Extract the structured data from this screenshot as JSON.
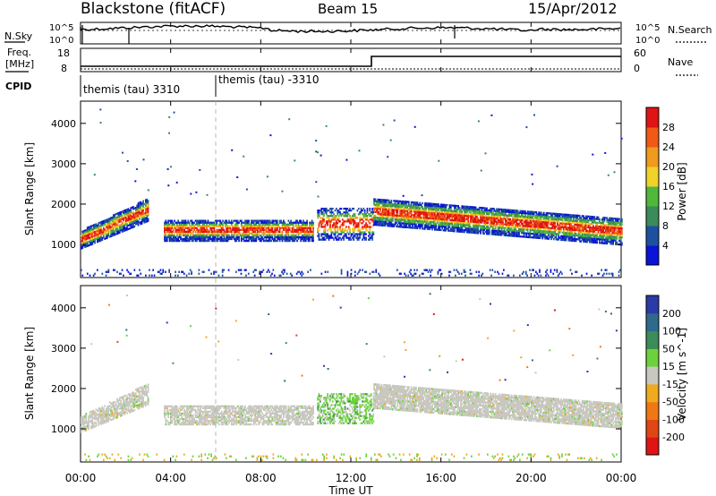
{
  "header": {
    "title": "Blackstone (fitACF)",
    "beam": "Beam 15",
    "date": "15/Apr/2012"
  },
  "labels": {
    "nsky": "N.Sky",
    "nsearch": "N.Search",
    "freq_line1": "Freq.",
    "freq_line2": "[MHz]",
    "nave": "Nave",
    "cpid": "CPID",
    "cpid_1": "themis (tau) 3310",
    "cpid_2": "themis (tau) -3310",
    "time_axis": "Time UT"
  },
  "ticks": {
    "noise_left": [
      "10^5",
      "10^0"
    ],
    "noise_right": [
      "10^5",
      "10^0"
    ],
    "freq_left": [
      "18",
      "8"
    ],
    "nave_right": [
      "60",
      "0"
    ],
    "range": [
      "1000",
      "2000",
      "3000",
      "4000"
    ],
    "time": [
      "00:00",
      "04:00",
      "08:00",
      "12:00",
      "16:00",
      "20:00",
      "00:00"
    ]
  },
  "chart_data": [
    {
      "type": "heatmap",
      "name": "power",
      "xlabel": "Time UT",
      "ylabel": "Slant Range [km]",
      "colorbar_label": "Power [dB]",
      "colorbar_ticks": [
        "4",
        "8",
        "12",
        "16",
        "20",
        "24",
        "28"
      ],
      "colors": [
        "#0a14d8",
        "#1e50a0",
        "#3a8c5a",
        "#4fb83a",
        "#f0d22a",
        "#f09a1e",
        "#f05a14",
        "#e01414"
      ],
      "xlim_hours": [
        0,
        24
      ],
      "ylim_km": [
        180,
        4550
      ],
      "regions": [
        {
          "t_start": 0.0,
          "t_end": 3.0,
          "r_start": 1000,
          "r_end": 1900,
          "level": "high"
        },
        {
          "t_start": 3.7,
          "t_end": 10.3,
          "r_start": 1100,
          "r_end": 1600,
          "level": "high"
        },
        {
          "t_start": 10.5,
          "t_end": 13.0,
          "r_start": 1100,
          "r_end": 2700,
          "level": "medium"
        },
        {
          "t_start": 13.0,
          "t_end": 24.0,
          "r_start": 1200,
          "r_end": 2300,
          "level": "high"
        },
        {
          "t_start": 0.0,
          "t_end": 24.0,
          "r_start": 200,
          "r_end": 400,
          "level": "low"
        }
      ]
    },
    {
      "type": "heatmap",
      "name": "velocity",
      "xlabel": "Time UT",
      "ylabel": "Slant Range [km]",
      "colorbar_label": "Velocity [m s^-1]",
      "colorbar_ticks": [
        "200",
        "100",
        "50",
        "15",
        "-15",
        "-50",
        "-100",
        "-200"
      ],
      "colors": [
        "#2a3aa8",
        "#2f6a8c",
        "#3c8c5a",
        "#6cd23c",
        "#c8c8c0",
        "#f0aa1e",
        "#f07814",
        "#e04614",
        "#e01414"
      ],
      "xlim_hours": [
        0,
        24
      ],
      "ylim_km": [
        180,
        4550
      ],
      "regions": [
        {
          "t_start": 0.0,
          "t_end": 3.0,
          "r_start": 1000,
          "r_end": 1900,
          "level": "gray"
        },
        {
          "t_start": 3.7,
          "t_end": 10.3,
          "r_start": 1100,
          "r_end": 1600,
          "level": "gray"
        },
        {
          "t_start": 10.5,
          "t_end": 13.0,
          "r_start": 1100,
          "r_end": 2700,
          "level": "green"
        },
        {
          "t_start": 13.0,
          "t_end": 24.0,
          "r_start": 1200,
          "r_end": 2300,
          "level": "gray"
        }
      ]
    }
  ]
}
